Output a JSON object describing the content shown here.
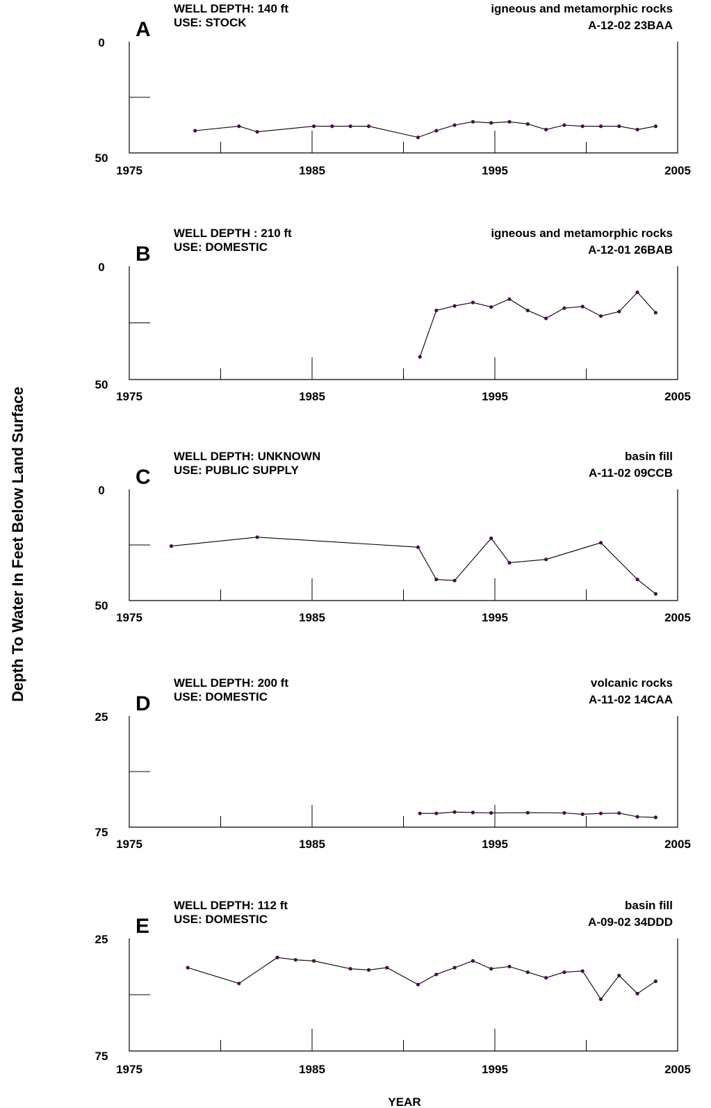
{
  "y_axis_label": "Depth To Water In Feet Below Land Surface",
  "x_axis_label": "YEAR",
  "colors": {
    "line": "#000000",
    "marker": "#4a0a4e",
    "background": "#ffffff"
  },
  "chart_data": [
    {
      "type": "line",
      "panel": "A",
      "well_depth": "WELL DEPTH:  140 ft",
      "use": "USE:  STOCK",
      "geology": "igneous and metamorphic rocks",
      "site_id": "A-12-02 23BAA",
      "xlim": [
        1975,
        2005
      ],
      "ylim": [
        0,
        50
      ],
      "y_inverted": true,
      "x_ticks": [
        1975,
        1985,
        1995,
        2005
      ],
      "y_ticks": [
        0,
        50
      ],
      "series": [
        {
          "x": [
            1978.6,
            1981.0,
            1982.0,
            1985.1,
            1986.1,
            1987.1,
            1988.1,
            1990.8,
            1991.8,
            1992.8,
            1993.8,
            1994.8,
            1995.8,
            1996.8,
            1997.8,
            1998.8,
            1999.8,
            2000.8,
            2001.8,
            2002.8,
            2003.8
          ],
          "y": [
            40,
            38,
            40.5,
            38,
            38,
            38,
            38,
            43,
            40,
            37.5,
            36,
            36.5,
            36,
            37,
            39.5,
            37.5,
            38,
            38,
            38,
            39.5,
            38
          ]
        }
      ]
    },
    {
      "type": "line",
      "panel": "B",
      "well_depth": "WELL DEPTH :  210 ft",
      "use": "USE:  DOMESTIC",
      "geology": "igneous and metamorphic rocks",
      "site_id": "A-12-01 26BAB",
      "xlim": [
        1975,
        2005
      ],
      "ylim": [
        0,
        50
      ],
      "y_inverted": true,
      "x_ticks": [
        1975,
        1985,
        1995,
        2005
      ],
      "y_ticks": [
        0,
        50
      ],
      "series": [
        {
          "x": [
            1990.9,
            1991.8,
            1992.8,
            1993.8,
            1994.8,
            1995.8,
            1996.8,
            1997.8,
            1998.8,
            1999.8,
            2000.8,
            2001.8,
            2002.8,
            2003.8
          ],
          "y": [
            40,
            19.5,
            17.5,
            16,
            18,
            14.5,
            19.5,
            23,
            18.5,
            17.8,
            22,
            20,
            11.5,
            20.5
          ]
        }
      ]
    },
    {
      "type": "line",
      "panel": "C",
      "well_depth": "WELL DEPTH:  UNKNOWN",
      "use": "USE:  PUBLIC SUPPLY",
      "geology": "basin fill",
      "site_id": "A-11-02 09CCB",
      "xlim": [
        1975,
        2005
      ],
      "ylim": [
        0,
        50
      ],
      "y_inverted": true,
      "x_ticks": [
        1975,
        1985,
        1995,
        2005
      ],
      "y_ticks": [
        0,
        50
      ],
      "series": [
        {
          "x": [
            1977.3,
            1982.0,
            1990.8,
            1991.8,
            1992.8,
            1994.8,
            1995.8,
            1997.8,
            2000.8,
            2002.8,
            2003.8
          ],
          "y": [
            25.5,
            21.5,
            26,
            40.5,
            41,
            22,
            33,
            31.5,
            24,
            40.5,
            47
          ]
        }
      ]
    },
    {
      "type": "line",
      "panel": "D",
      "well_depth": "WELL DEPTH:  200 ft",
      "use": "USE:  DOMESTIC",
      "geology": "volcanic rocks",
      "site_id": "A-11-02 14CAA",
      "xlim": [
        1975,
        2005
      ],
      "ylim": [
        25,
        75
      ],
      "y_inverted": true,
      "x_ticks": [
        1975,
        1985,
        1995,
        2005
      ],
      "y_ticks": [
        25,
        75
      ],
      "series": [
        {
          "x": [
            1990.9,
            1991.8,
            1992.8,
            1993.8,
            1994.8,
            1996.8,
            1998.8,
            1999.8,
            2000.8,
            2001.8,
            2002.8,
            2003.8
          ],
          "y": [
            68.8,
            68.8,
            68.2,
            68.4,
            68.6,
            68.5,
            68.6,
            69.2,
            68.8,
            68.7,
            70.3,
            70.6
          ]
        }
      ]
    },
    {
      "type": "line",
      "panel": "E",
      "well_depth": "WELL DEPTH:  112 ft",
      "use": "USE:  DOMESTIC",
      "geology": "basin fill",
      "site_id": "A-09-02 34DDD",
      "xlim": [
        1975,
        2005
      ],
      "ylim": [
        25,
        75
      ],
      "y_inverted": true,
      "x_ticks": [
        1975,
        1985,
        1995,
        2005
      ],
      "y_ticks": [
        25,
        75
      ],
      "series": [
        {
          "x": [
            1978.2,
            1981.0,
            1983.1,
            1984.1,
            1985.1,
            1987.1,
            1988.1,
            1989.1,
            1990.8,
            1991.8,
            1992.8,
            1993.8,
            1994.8,
            1995.8,
            1996.8,
            1997.8,
            1998.8,
            1999.8,
            2000.8,
            2001.8,
            2002.8,
            2003.8
          ],
          "y": [
            38,
            45,
            33.5,
            34.5,
            35,
            38.5,
            39,
            38,
            45.5,
            41,
            38,
            35,
            38.5,
            37.5,
            40,
            42.5,
            40,
            39.5,
            52,
            41.5,
            49.5,
            44
          ]
        }
      ]
    }
  ]
}
